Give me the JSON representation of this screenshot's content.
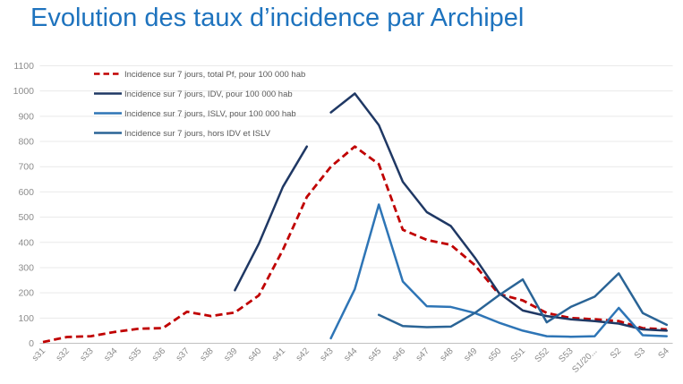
{
  "title": "Evolution des taux d’incidence par Archipel",
  "colors": {
    "title": "#1E73BE",
    "axis_text": "#8C8C8C",
    "gridline": "#E9E9E9",
    "axis_line": "#C0C0C0",
    "legend_text": "#595959",
    "background": "#FFFFFF"
  },
  "chart_data": {
    "type": "line",
    "title": "Evolution des taux d’incidence par Archipel",
    "xlabel": "",
    "ylabel": "",
    "ylim": [
      0,
      1100
    ],
    "ytick_step": 100,
    "grid": true,
    "legend_position": "top-left-inside",
    "categories": [
      "s31",
      "s32",
      "s33",
      "s34",
      "s35",
      "s36",
      "s37",
      "s38",
      "s39",
      "s40",
      "s41",
      "s42",
      "s43",
      "s44",
      "s45",
      "s46",
      "s47",
      "s48",
      "s49",
      "s50",
      "S51",
      "S52",
      "S53",
      "S1/20...",
      "S2",
      "S3",
      "S4"
    ],
    "series": [
      {
        "id": "total-pf",
        "name": "Incidence sur 7 jours, total Pf, pour 100 000 hab",
        "color": "#C00000",
        "dash": "dashed",
        "values": [
          5,
          25,
          28,
          45,
          58,
          60,
          125,
          108,
          122,
          190,
          370,
          580,
          700,
          780,
          710,
          450,
          410,
          390,
          310,
          195,
          170,
          120,
          100,
          95,
          88,
          60,
          55
        ]
      },
      {
        "id": "idv",
        "name": "Incidence sur 7 jours, IDV, pour 100 000 hab",
        "color": "#1F3864",
        "dash": "solid",
        "breaks": [
          12
        ],
        "values": [
          null,
          null,
          null,
          null,
          null,
          null,
          null,
          null,
          210,
          395,
          620,
          780,
          915,
          990,
          865,
          640,
          520,
          465,
          340,
          200,
          130,
          108,
          95,
          88,
          78,
          55,
          50
        ]
      },
      {
        "id": "islv",
        "name": "Incidence sur 7 jours, ISLV, pour 100 000 hab",
        "color": "#2E75B6",
        "dash": "solid",
        "values": [
          null,
          null,
          null,
          null,
          null,
          null,
          null,
          null,
          null,
          null,
          null,
          null,
          20,
          215,
          550,
          245,
          147,
          144,
          120,
          82,
          50,
          28,
          26,
          28,
          140,
          32,
          28
        ]
      },
      {
        "id": "hors-idv-islv",
        "name": "Incidence sur 7 jours, hors IDV et ISLV",
        "color": "#2A6496",
        "dash": "solid",
        "values": [
          null,
          null,
          null,
          null,
          null,
          null,
          null,
          null,
          null,
          null,
          null,
          null,
          null,
          null,
          113,
          68,
          64,
          66,
          120,
          190,
          253,
          83,
          144,
          185,
          277,
          120,
          73
        ]
      }
    ]
  }
}
